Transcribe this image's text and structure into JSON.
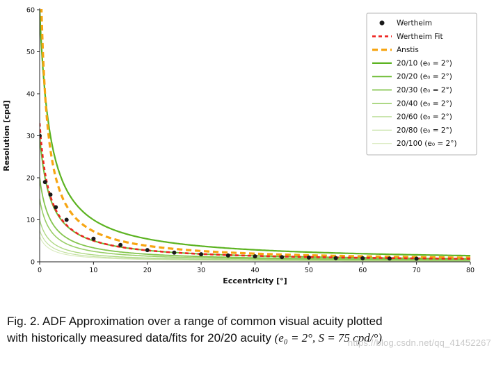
{
  "figure": {
    "caption": {
      "label": "Fig. 2.",
      "line1": "ADF Approximation over a range of common visual acuity plotted",
      "line2": "with historically measured data/fits for 20/20 acuity",
      "math": "(e₀ = 2°, S = 75 cpd/°)"
    },
    "watermark": "https://blog.csdn.net/qq_41452267"
  },
  "chart_data": {
    "type": "line",
    "title": "",
    "xlabel": "Eccentricity [°]",
    "ylabel": "Resolution [cpd]",
    "xlim": [
      0,
      80
    ],
    "ylim": [
      0,
      60
    ],
    "xticks": [
      0,
      10,
      20,
      30,
      40,
      50,
      60,
      70,
      80
    ],
    "yticks": [
      0,
      10,
      20,
      30,
      40,
      50,
      60
    ],
    "grid": false,
    "legend_position": "upper right",
    "formula_note": "smooth curves follow resolution(e) = peak * e0 / (e + e0), clipped to the axis range",
    "series": [
      {
        "name": "Wertheim",
        "kind": "scatter",
        "color": "#1a1a1a",
        "x": [
          0,
          1,
          2,
          3,
          5,
          10,
          15,
          20,
          25,
          30,
          35,
          40,
          45,
          50,
          55,
          60,
          65,
          70
        ],
        "y": [
          30,
          19,
          16,
          13,
          10,
          5.5,
          4,
          2.8,
          2.2,
          1.8,
          1.5,
          1.3,
          1.1,
          1.0,
          0.9,
          0.85,
          0.8,
          0.75
        ]
      },
      {
        "name": "Wertheim Fit",
        "kind": "line",
        "style": "dashed",
        "dash": [
          5,
          4
        ],
        "width": 2.6,
        "color": "#ee2421",
        "model": {
          "peak": 33,
          "e0": 1.8
        }
      },
      {
        "name": "Anstis",
        "kind": "line",
        "style": "dashed",
        "dash": [
          8,
          5
        ],
        "width": 3.2,
        "color": "#f7a512",
        "model": {
          "peak": 80,
          "e0": 1.0
        }
      },
      {
        "name": "20/10 (e₀ = 2°)",
        "kind": "line",
        "style": "solid",
        "width": 2.2,
        "color": "#5cb321",
        "model": {
          "peak": 60,
          "e0": 2
        }
      },
      {
        "name": "20/20 (e₀ = 2°)",
        "kind": "line",
        "style": "solid",
        "width": 2.0,
        "color": "#6fbc35",
        "model": {
          "peak": 30,
          "e0": 2
        }
      },
      {
        "name": "20/30 (e₀ = 2°)",
        "kind": "line",
        "style": "solid",
        "width": 1.8,
        "color": "#84c54d",
        "model": {
          "peak": 20,
          "e0": 2
        }
      },
      {
        "name": "20/40 (e₀ = 2°)",
        "kind": "line",
        "style": "solid",
        "width": 1.6,
        "color": "#99ce67",
        "model": {
          "peak": 15,
          "e0": 2
        }
      },
      {
        "name": "20/60 (e₀ = 2°)",
        "kind": "line",
        "style": "solid",
        "width": 1.4,
        "color": "#aed883",
        "model": {
          "peak": 10,
          "e0": 2
        }
      },
      {
        "name": "20/80 (e₀ = 2°)",
        "kind": "line",
        "style": "solid",
        "width": 1.2,
        "color": "#c3e0a0",
        "model": {
          "peak": 7.5,
          "e0": 2
        }
      },
      {
        "name": "20/100 (e₀ = 2°)",
        "kind": "line",
        "style": "solid",
        "width": 1.1,
        "color": "#d8eabd",
        "model": {
          "peak": 6,
          "e0": 2
        }
      }
    ]
  }
}
